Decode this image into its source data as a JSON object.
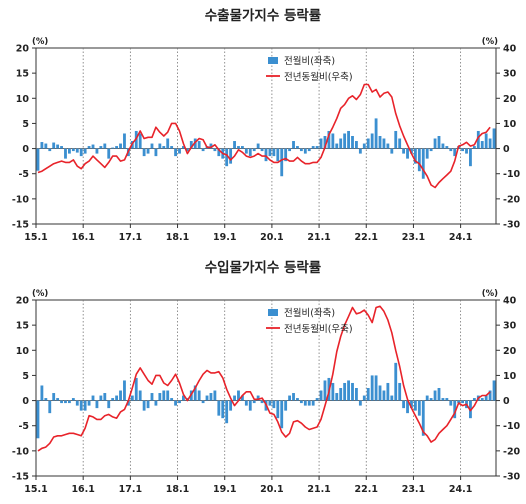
{
  "chart_data": [
    {
      "type": "bar+line",
      "title": "수출물가지수 등락률",
      "left_unit": "(%)",
      "right_unit": "(%)",
      "left_ylim": [
        -15,
        20
      ],
      "right_ylim": [
        -30,
        40
      ],
      "left_ticks": [
        20,
        15,
        10,
        5,
        0,
        -5,
        -10,
        -15
      ],
      "right_ticks": [
        40,
        30,
        20,
        10,
        0,
        -10,
        -20,
        -30
      ],
      "x_tick_labels": [
        "15.1",
        "16.1",
        "17.1",
        "18.1",
        "19.1",
        "20.1",
        "21.1",
        "22.1",
        "23.1",
        "24.1"
      ],
      "grid": "vertical dotted lines at January of each year",
      "legend_position": "top-center",
      "series": [
        {
          "name": "전월비(좌축)",
          "type": "bar",
          "axis": "left",
          "color": "#3b8fd0",
          "values": [
            -4.4,
            1.3,
            1.0,
            -0.5,
            1.2,
            0.8,
            0.5,
            -2.0,
            -1.0,
            -0.5,
            -0.8,
            -1.5,
            -1.0,
            0.5,
            0.8,
            -1.0,
            0.5,
            1.0,
            -2.0,
            0.2,
            0.5,
            1.0,
            3.0,
            -1.5,
            1.5,
            3.5,
            3.0,
            -1.5,
            -1.0,
            1.0,
            -1.5,
            1.0,
            0.5,
            2.0,
            0.5,
            -1.5,
            -1.0,
            0.5,
            -0.5,
            1.5,
            2.0,
            1.5,
            -0.5,
            0.5,
            1.0,
            -0.5,
            -1.5,
            -2.0,
            -3.5,
            -3.0,
            1.5,
            0.5,
            0.5,
            -1.0,
            -1.5,
            -0.5,
            1.0,
            -0.5,
            -2.5,
            -1.5,
            -1.5,
            -2.5,
            -5.5,
            -2.5,
            -0.5,
            1.5,
            0.5,
            -0.5,
            -1.0,
            -0.5,
            0.5,
            0.5,
            2.0,
            2.5,
            3.5,
            3.0,
            1.0,
            2.0,
            3.0,
            3.5,
            2.5,
            1.5,
            -1.0,
            1.0,
            2.0,
            3.0,
            6.0,
            2.5,
            2.0,
            1.0,
            -1.0,
            3.5,
            2.0,
            -1.0,
            -2.0,
            -1.0,
            -3.0,
            -4.5,
            -6.0,
            -2.0,
            -0.5,
            2.0,
            2.5,
            1.0,
            0.5,
            -0.5,
            -1.5,
            0.5,
            -0.5,
            -1.0,
            -3.5,
            0.5,
            3.5,
            1.5,
            3.0,
            2.0,
            4.0
          ]
        },
        {
          "name": "전년동월비(우축)",
          "type": "line",
          "axis": "right",
          "color": "#e8232a",
          "values": [
            -9.5,
            -9.0,
            -8.0,
            -7.0,
            -6.0,
            -5.5,
            -5.0,
            -5.5,
            -5.5,
            -4.5,
            -7.0,
            -8.0,
            -6.0,
            -5.0,
            -3.0,
            -4.5,
            -6.0,
            -7.5,
            -5.5,
            -3.0,
            -3.0,
            -5.0,
            -4.5,
            -1.0,
            2.0,
            4.0,
            7.0,
            4.0,
            4.5,
            4.5,
            8.5,
            6.5,
            5.0,
            6.5,
            10.0,
            10.0,
            7.0,
            2.0,
            -2.0,
            0.5,
            2.5,
            4.0,
            3.5,
            0.5,
            0.5,
            1.5,
            -0.5,
            -2.0,
            -2.5,
            -4.5,
            -3.0,
            -0.5,
            -1.5,
            -3.0,
            -3.5,
            -3.0,
            -2.0,
            -3.0,
            -3.0,
            -4.5,
            -5.5,
            -5.5,
            -4.5,
            -4.0,
            -5.0,
            -5.0,
            -3.5,
            -5.0,
            -6.0,
            -6.0,
            -5.5,
            -5.5,
            -3.5,
            0.5,
            5.5,
            8.5,
            12.0,
            16.0,
            17.5,
            20.0,
            21.0,
            19.5,
            21.5,
            25.5,
            25.5,
            22.5,
            23.5,
            20.5,
            22.0,
            22.5,
            20.5,
            14.0,
            9.0,
            5.0,
            1.5,
            -2.0,
            -5.0,
            -6.0,
            -8.5,
            -11.0,
            -14.5,
            -15.5,
            -13.5,
            -12.0,
            -10.5,
            -9.0,
            -5.0,
            1.0,
            1.5,
            2.5,
            1.0,
            1.5,
            4.5,
            6.0,
            6.5,
            8.5
          ]
        }
      ]
    },
    {
      "type": "bar+line",
      "title": "수입물가지수 등락률",
      "left_unit": "(%)",
      "right_unit": "(%)",
      "left_ylim": [
        -15,
        20
      ],
      "right_ylim": [
        -30,
        40
      ],
      "left_ticks": [
        20,
        15,
        10,
        5,
        0,
        -5,
        -10,
        -15
      ],
      "right_ticks": [
        40,
        30,
        20,
        10,
        0,
        -10,
        -20,
        -30
      ],
      "x_tick_labels": [
        "15.1",
        "16.1",
        "17.1",
        "18.1",
        "19.1",
        "20.1",
        "21.1",
        "22.1",
        "23.1",
        "24.1"
      ],
      "grid": "vertical dotted lines at January of each year",
      "legend_position": "top-center",
      "series": [
        {
          "name": "전월비(좌축)",
          "type": "bar",
          "axis": "left",
          "color": "#3b8fd0",
          "values": [
            -7.5,
            3.0,
            0.5,
            -2.5,
            1.5,
            0.5,
            -0.5,
            -0.5,
            -0.5,
            0.5,
            -1.0,
            -2.0,
            -2.0,
            -1.0,
            1.0,
            -1.5,
            1.0,
            1.5,
            -1.5,
            0.5,
            1.0,
            2.0,
            4.0,
            -1.0,
            1.0,
            4.5,
            2.0,
            -2.0,
            -1.5,
            1.5,
            -1.0,
            1.5,
            2.0,
            2.0,
            0.5,
            -1.0,
            -0.5,
            1.0,
            0.5,
            2.0,
            3.0,
            2.0,
            -0.5,
            1.0,
            1.5,
            2.0,
            -3.0,
            -3.5,
            -4.5,
            -2.0,
            1.0,
            2.0,
            1.0,
            -1.0,
            -2.0,
            -0.5,
            1.0,
            -0.5,
            -2.0,
            -1.0,
            -1.5,
            -3.5,
            -5.5,
            -2.0,
            1.0,
            1.5,
            0.5,
            -0.5,
            -1.0,
            -1.0,
            -1.0,
            0.5,
            2.0,
            4.0,
            4.5,
            3.5,
            1.5,
            2.5,
            3.5,
            4.0,
            3.5,
            2.5,
            -1.0,
            1.0,
            2.5,
            5.0,
            5.0,
            3.0,
            2.0,
            3.5,
            1.0,
            7.5,
            3.5,
            -1.5,
            -2.5,
            -1.5,
            -2.0,
            -3.0,
            -7.0,
            1.0,
            0.5,
            2.0,
            2.5,
            0.5,
            0.5,
            -1.0,
            -3.5,
            -0.5,
            -0.5,
            -1.5,
            -3.5,
            0.5,
            1.0,
            0.5,
            1.0,
            2.0,
            4.0
          ]
        },
        {
          "name": "전년동월비(우축)",
          "type": "line",
          "axis": "right",
          "color": "#e8232a",
          "values": [
            -20.0,
            -19.0,
            -18.5,
            -17.0,
            -14.5,
            -14.0,
            -14.0,
            -13.5,
            -13.0,
            -13.0,
            -13.5,
            -14.0,
            -11.0,
            -6.0,
            -6.5,
            -7.5,
            -7.5,
            -6.0,
            -5.5,
            -6.5,
            -7.0,
            -4.5,
            -3.5,
            0.0,
            5.0,
            10.5,
            13.0,
            10.5,
            8.0,
            6.5,
            10.0,
            10.0,
            7.0,
            6.0,
            8.0,
            10.5,
            7.0,
            2.5,
            0.0,
            2.5,
            5.0,
            8.0,
            10.5,
            12.0,
            11.0,
            11.0,
            11.5,
            9.0,
            4.5,
            1.0,
            -2.0,
            0.0,
            2.0,
            3.5,
            3.5,
            0.5,
            0.5,
            1.0,
            -1.5,
            -5.0,
            -5.5,
            -8.5,
            -12.5,
            -14.5,
            -13.0,
            -8.5,
            -8.0,
            -9.0,
            -10.5,
            -11.5,
            -11.0,
            -10.5,
            -7.5,
            -2.0,
            3.5,
            10.5,
            19.5,
            25.5,
            30.0,
            33.5,
            37.0,
            34.5,
            35.0,
            36.0,
            34.0,
            31.0,
            37.0,
            37.5,
            35.5,
            32.0,
            27.0,
            20.0,
            13.5,
            6.0,
            0.5,
            -3.0,
            -6.0,
            -9.0,
            -12.5,
            -14.0,
            -16.5,
            -15.5,
            -13.0,
            -11.5,
            -10.0,
            -7.5,
            -5.0,
            -1.0,
            -2.0,
            -1.5,
            -4.0,
            -2.0,
            1.0,
            2.0,
            2.0,
            3.5
          ]
        }
      ]
    }
  ]
}
